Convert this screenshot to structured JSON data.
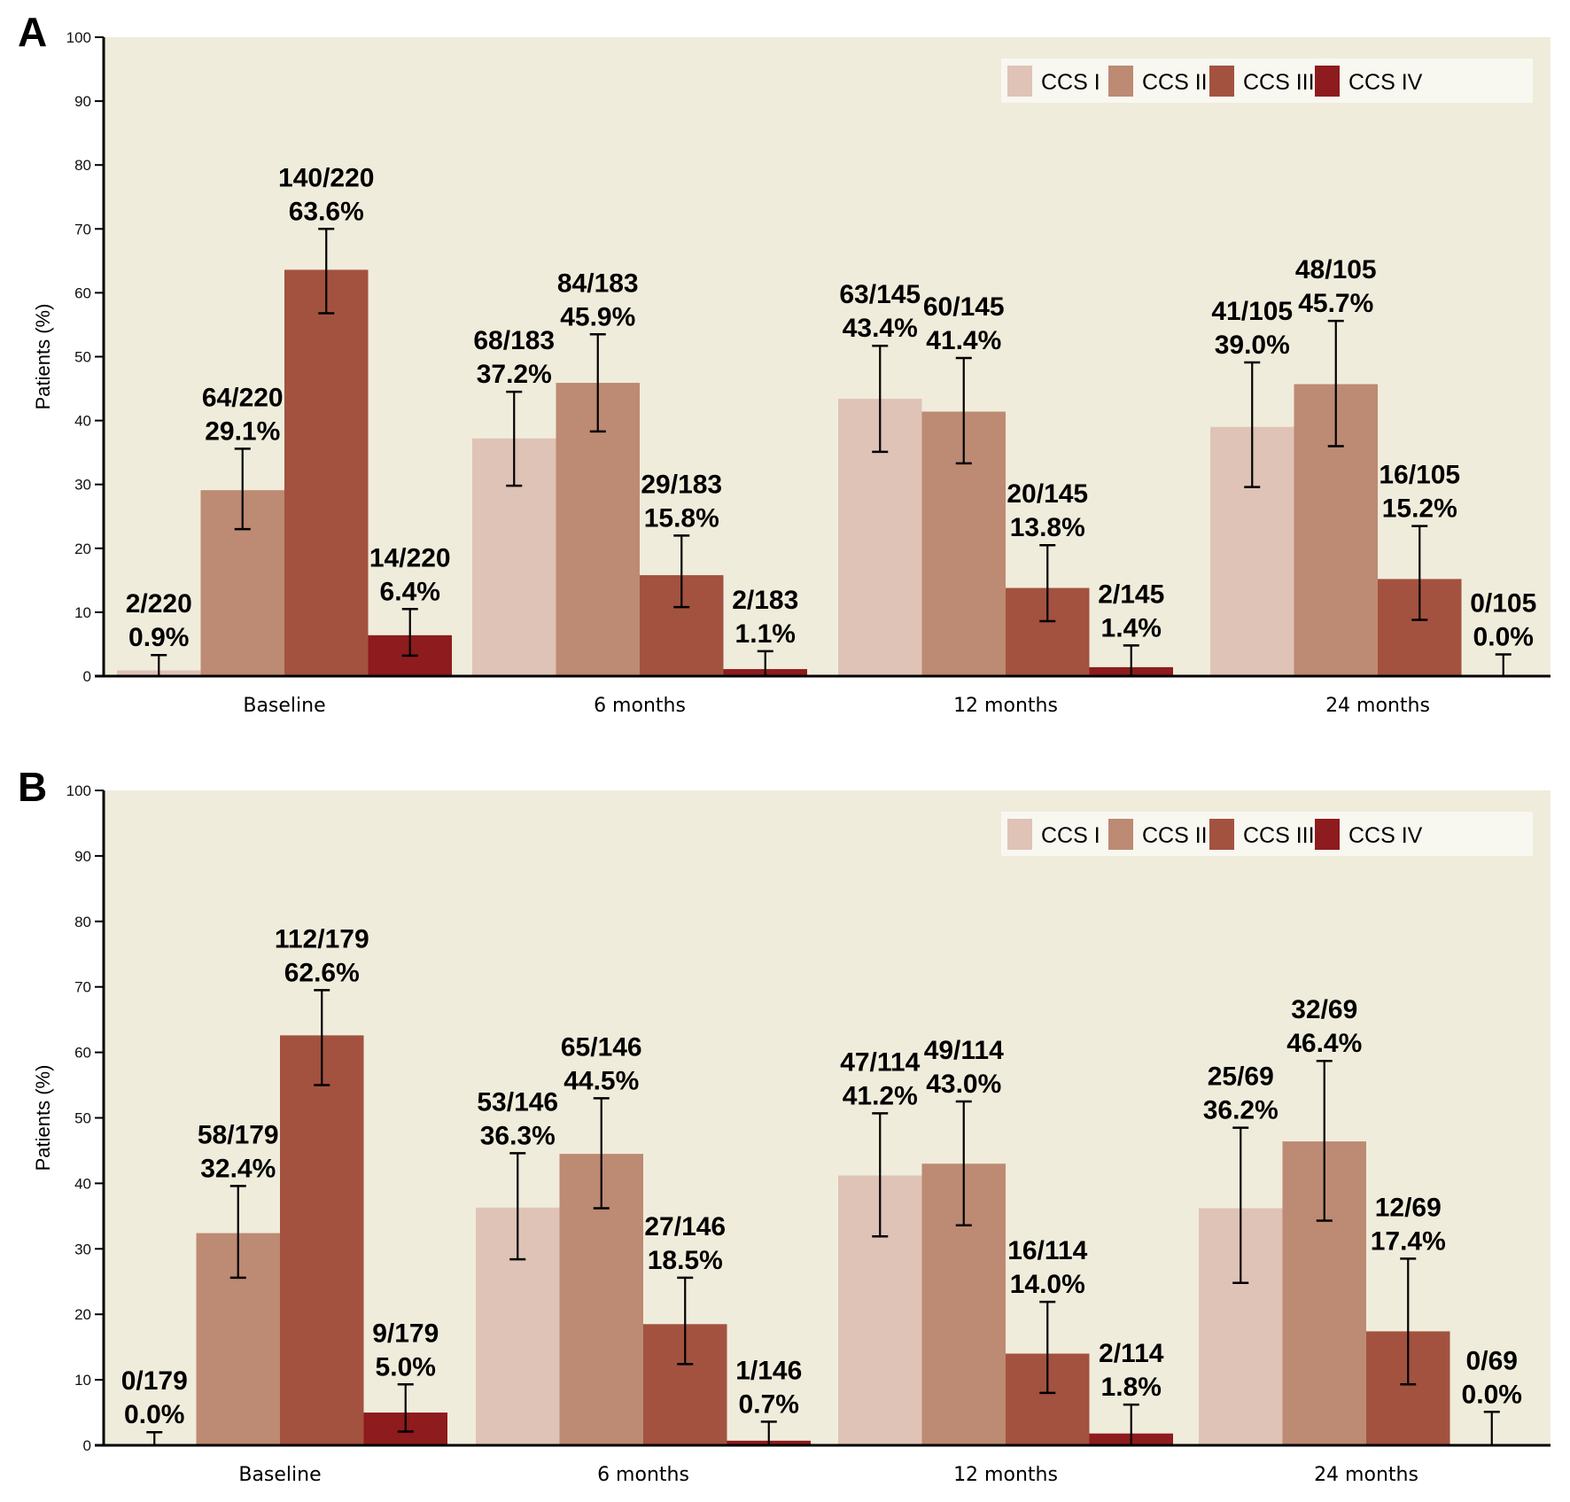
{
  "chart_data": [
    {
      "type": "bar",
      "panel": "A",
      "title": "",
      "xlabel": "",
      "ylabel": "Patients (%)",
      "ylim": [
        0,
        100
      ],
      "yticks": [
        "0",
        "10",
        "20",
        "30",
        "40",
        "50",
        "60",
        "70",
        "80",
        "90",
        "100"
      ],
      "categories": [
        "Baseline",
        "6 months",
        "12 months",
        "24 months"
      ],
      "legend_position": "top-right",
      "series": [
        {
          "name": "CCS I",
          "color": "#dfc3b6",
          "values": [
            0.9,
            37.2,
            43.4,
            39.0
          ],
          "labels": [
            "2/220",
            "68/183",
            "63/145",
            "41/105"
          ],
          "pct_labels": [
            "0.9%",
            "37.2%",
            "43.4%",
            "39.0%"
          ],
          "err_low": [
            0,
            29.8,
            35.1,
            29.6
          ],
          "err_high": [
            3.3,
            44.5,
            51.7,
            49.1
          ]
        },
        {
          "name": "CCS II",
          "color": "#bd8a73",
          "values": [
            29.1,
            45.9,
            41.4,
            45.7
          ],
          "labels": [
            "64/220",
            "84/183",
            "60/145",
            "48/105"
          ],
          "pct_labels": [
            "29.1%",
            "45.9%",
            "41.4%",
            "45.7%"
          ],
          "err_low": [
            23.0,
            38.3,
            33.3,
            36.0
          ],
          "err_high": [
            35.6,
            53.5,
            49.8,
            55.6
          ]
        },
        {
          "name": "CCS III",
          "color": "#a35240",
          "values": [
            63.6,
            15.8,
            13.8,
            15.2
          ],
          "labels": [
            "140/220",
            "29/183",
            "20/145",
            "16/105"
          ],
          "pct_labels": [
            "63.6%",
            "15.8%",
            "13.8%",
            "15.2%"
          ],
          "err_low": [
            56.8,
            10.8,
            8.6,
            8.8
          ],
          "err_high": [
            70.0,
            22.0,
            20.5,
            23.5
          ]
        },
        {
          "name": "CCS IV",
          "color": "#8e1b1d",
          "values": [
            6.4,
            1.1,
            1.4,
            0.0
          ],
          "labels": [
            "14/220",
            "2/183",
            "2/145",
            "0/105"
          ],
          "pct_labels": [
            "6.4%",
            "1.1%",
            "1.4%",
            "0.0%"
          ],
          "err_low": [
            3.2,
            0,
            0,
            0
          ],
          "err_high": [
            10.5,
            3.9,
            4.8,
            3.4
          ]
        }
      ]
    },
    {
      "type": "bar",
      "panel": "B",
      "title": "",
      "xlabel": "",
      "ylabel": "Patients (%)",
      "ylim": [
        0,
        100
      ],
      "yticks": [
        "0",
        "10",
        "20",
        "30",
        "40",
        "50",
        "60",
        "70",
        "80",
        "90",
        "100"
      ],
      "categories": [
        "Baseline",
        "6 months",
        "12 months",
        "24 months"
      ],
      "legend_position": "top-right",
      "series": [
        {
          "name": "CCS I",
          "color": "#dfc3b6",
          "values": [
            0.0,
            36.3,
            41.2,
            36.2
          ],
          "labels": [
            "0/179",
            "53/146",
            "47/114",
            "25/69"
          ],
          "pct_labels": [
            "0.0%",
            "36.3%",
            "41.2%",
            "36.2%"
          ],
          "err_low": [
            0,
            28.4,
            31.9,
            24.8
          ],
          "err_high": [
            2.0,
            44.6,
            50.7,
            48.5
          ]
        },
        {
          "name": "CCS II",
          "color": "#bd8a73",
          "values": [
            32.4,
            44.5,
            43.0,
            46.4
          ],
          "labels": [
            "58/179",
            "65/146",
            "49/114",
            "32/69"
          ],
          "pct_labels": [
            "32.4%",
            "44.5%",
            "43.0%",
            "46.4%"
          ],
          "err_low": [
            25.6,
            36.2,
            33.6,
            34.3
          ],
          "err_high": [
            39.6,
            53.0,
            52.5,
            58.7
          ]
        },
        {
          "name": "CCS III",
          "color": "#a35240",
          "values": [
            62.6,
            18.5,
            14.0,
            17.4
          ],
          "labels": [
            "112/179",
            "27/146",
            "16/114",
            "12/69"
          ],
          "pct_labels": [
            "62.6%",
            "18.5%",
            "14.0%",
            "17.4%"
          ],
          "err_low": [
            55.0,
            12.4,
            8.0,
            9.3
          ],
          "err_high": [
            69.5,
            25.6,
            21.9,
            28.5
          ]
        },
        {
          "name": "CCS IV",
          "color": "#8e1b1d",
          "values": [
            5.0,
            0.7,
            1.8,
            0.0
          ],
          "labels": [
            "9/179",
            "1/146",
            "2/114",
            "0/69"
          ],
          "pct_labels": [
            "5.0%",
            "0.7%",
            "1.8%",
            "0.0%"
          ],
          "err_low": [
            2.1,
            0,
            0,
            0
          ],
          "err_high": [
            9.3,
            3.6,
            6.2,
            5.1
          ]
        }
      ]
    }
  ],
  "colors": {
    "plot_background": "#f0ecdb",
    "legend_background": "#f8f7f0",
    "axis": "#000000"
  }
}
